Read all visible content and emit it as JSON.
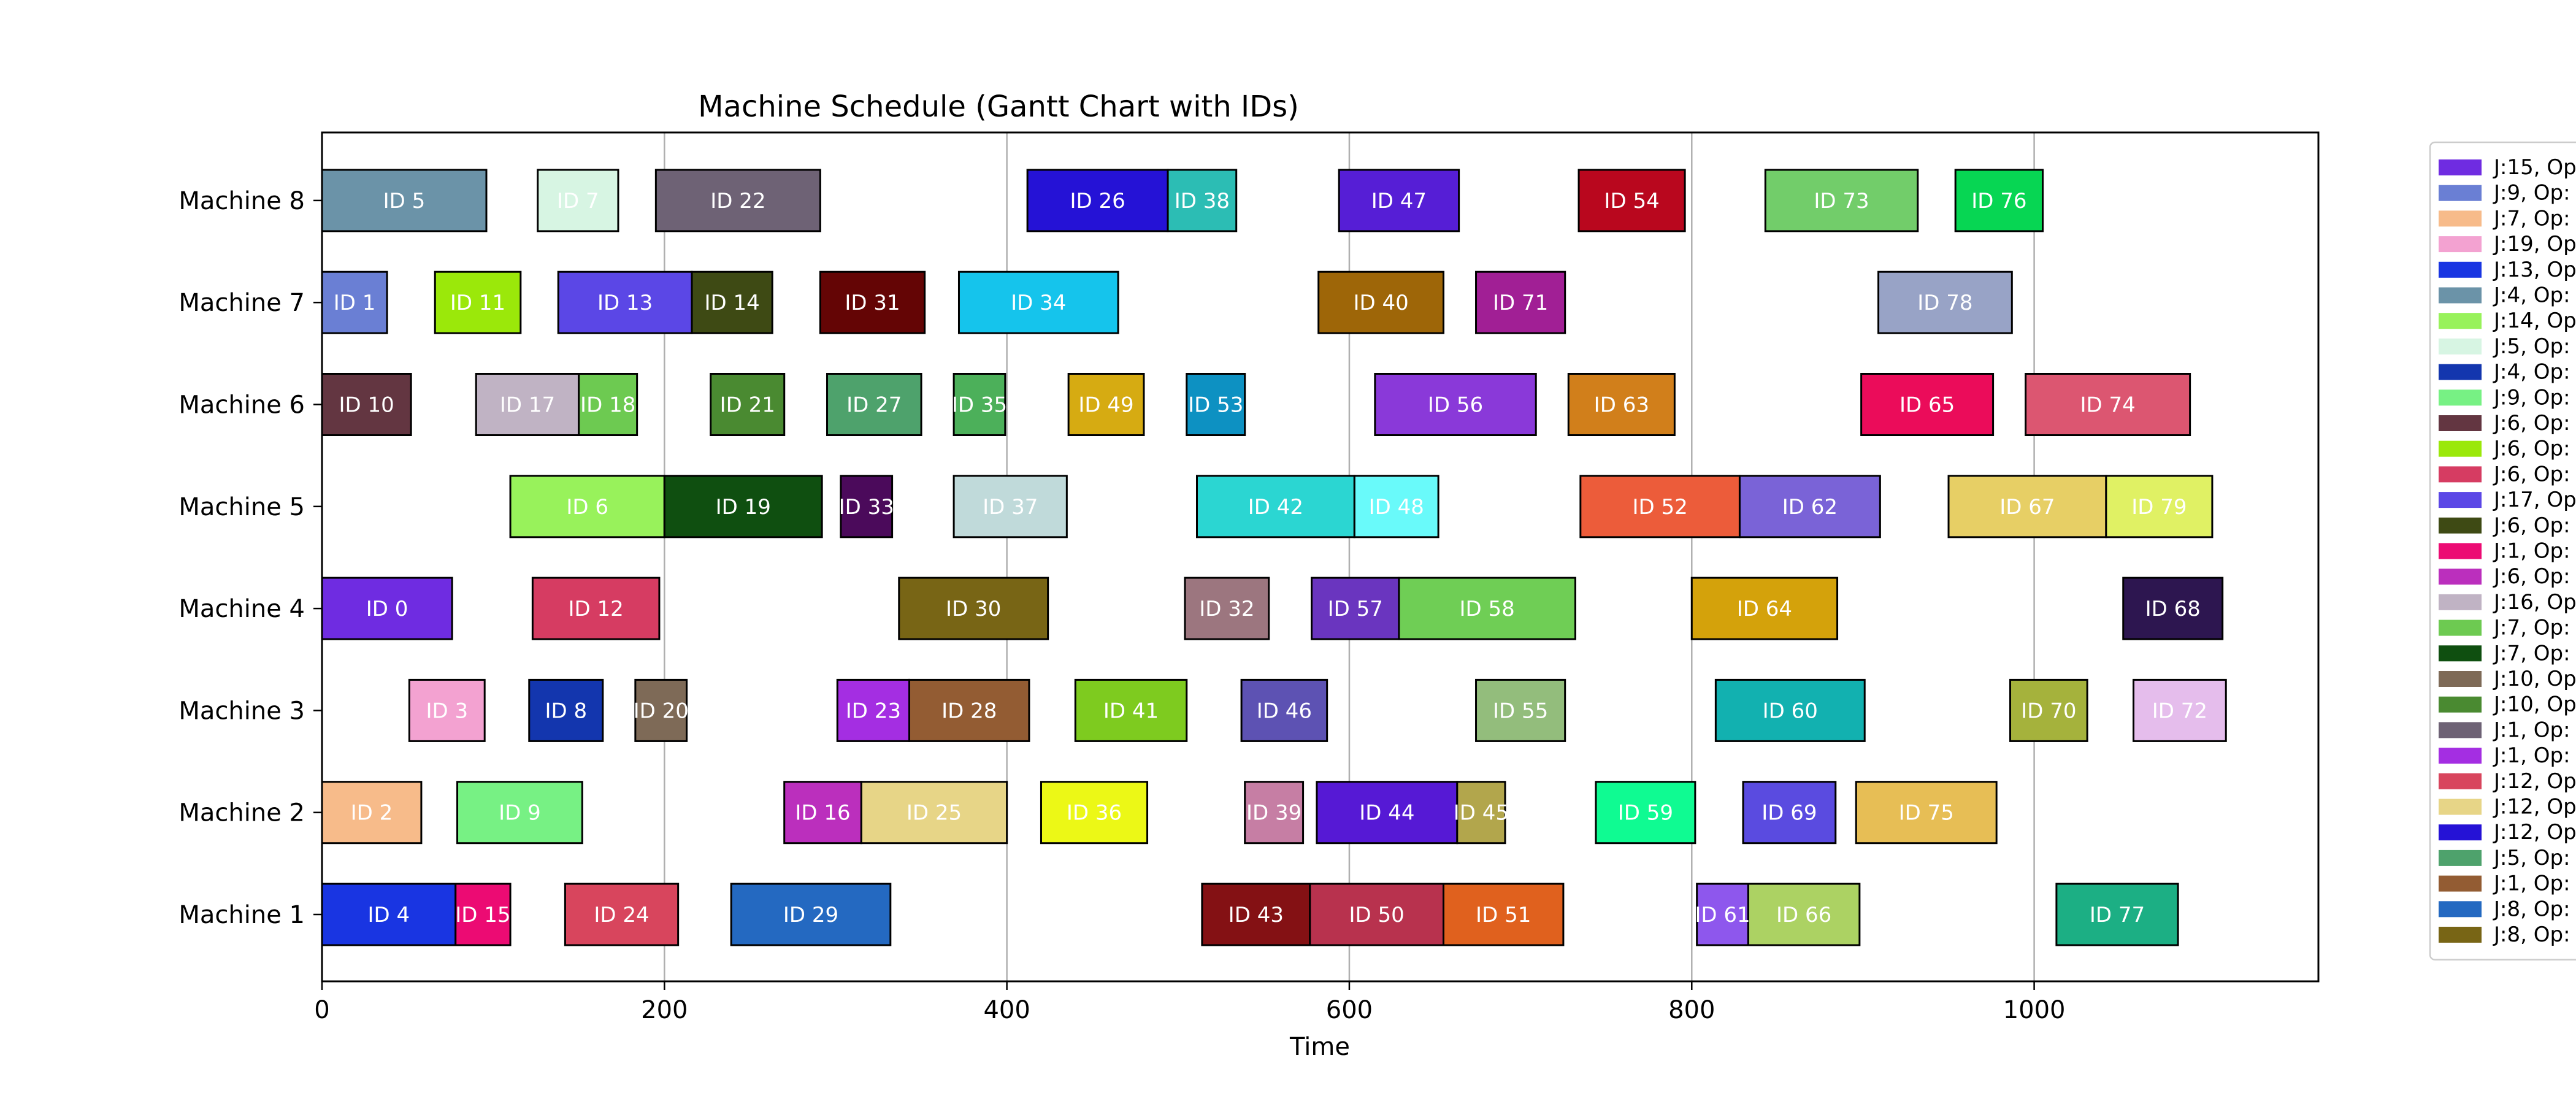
{
  "chart_data": {
    "type": "gantt",
    "title": "Machine Schedule (Gantt Chart with IDs)",
    "xlabel": "Time",
    "ylabel": "",
    "xlim": [
      0,
      1166
    ],
    "x_ticks": [
      0,
      200,
      400,
      600,
      800,
      1000
    ],
    "grid": "vertical",
    "legend_placement": "right",
    "machines": [
      "Machine 1",
      "Machine 2",
      "Machine 3",
      "Machine 4",
      "Machine 5",
      "Machine 6",
      "Machine 7",
      "Machine 8"
    ],
    "tasks": [
      {
        "label": "ID 5",
        "machine": "Machine 8",
        "start": 0,
        "end": 96,
        "color": "#6b93a8"
      },
      {
        "label": "ID 7",
        "machine": "Machine 8",
        "start": 126,
        "end": 173,
        "color": "#d7f5e3"
      },
      {
        "label": "ID 22",
        "machine": "Machine 8",
        "start": 195,
        "end": 291,
        "color": "#6e6275"
      },
      {
        "label": "ID 26",
        "machine": "Machine 8",
        "start": 412,
        "end": 494,
        "color": "#2512d6"
      },
      {
        "label": "ID 38",
        "machine": "Machine 8",
        "start": 494,
        "end": 534,
        "color": "#2cbdb4"
      },
      {
        "label": "ID 47",
        "machine": "Machine 8",
        "start": 594,
        "end": 664,
        "color": "#561ed6"
      },
      {
        "label": "ID 54",
        "machine": "Machine 8",
        "start": 734,
        "end": 796,
        "color": "#b9071e"
      },
      {
        "label": "ID 73",
        "machine": "Machine 8",
        "start": 843,
        "end": 932,
        "color": "#72cd6a"
      },
      {
        "label": "ID 76",
        "machine": "Machine 8",
        "start": 954,
        "end": 1005,
        "color": "#07d653"
      },
      {
        "label": "ID 1",
        "machine": "Machine 7",
        "start": 0,
        "end": 38,
        "color": "#6a7fd4"
      },
      {
        "label": "ID 11",
        "machine": "Machine 7",
        "start": 66,
        "end": 116,
        "color": "#9be80a"
      },
      {
        "label": "ID 13",
        "machine": "Machine 7",
        "start": 138,
        "end": 216,
        "color": "#5b47e6"
      },
      {
        "label": "ID 14",
        "machine": "Machine 7",
        "start": 216,
        "end": 263,
        "color": "#3e4a14"
      },
      {
        "label": "ID 31",
        "machine": "Machine 7",
        "start": 291,
        "end": 352,
        "color": "#640505"
      },
      {
        "label": "ID 34",
        "machine": "Machine 7",
        "start": 372,
        "end": 465,
        "color": "#15c4ec"
      },
      {
        "label": "ID 40",
        "machine": "Machine 7",
        "start": 582,
        "end": 655,
        "color": "#9e6608"
      },
      {
        "label": "ID 71",
        "machine": "Machine 7",
        "start": 674,
        "end": 726,
        "color": "#a11f95"
      },
      {
        "label": "ID 78",
        "machine": "Machine 7",
        "start": 909,
        "end": 987,
        "color": "#98a3c6"
      },
      {
        "label": "ID 10",
        "machine": "Machine 6",
        "start": 0,
        "end": 52,
        "color": "#633641"
      },
      {
        "label": "ID 17",
        "machine": "Machine 6",
        "start": 90,
        "end": 150,
        "color": "#c0b3c4"
      },
      {
        "label": "ID 18",
        "machine": "Machine 6",
        "start": 150,
        "end": 184,
        "color": "#6dca51"
      },
      {
        "label": "ID 21",
        "machine": "Machine 6",
        "start": 227,
        "end": 270,
        "color": "#4a8a31"
      },
      {
        "label": "ID 27",
        "machine": "Machine 6",
        "start": 295,
        "end": 350,
        "color": "#4ea26c"
      },
      {
        "label": "ID 35",
        "machine": "Machine 6",
        "start": 369,
        "end": 399,
        "color": "#4cb05a"
      },
      {
        "label": "ID 49",
        "machine": "Machine 6",
        "start": 436,
        "end": 480,
        "color": "#d6ab12"
      },
      {
        "label": "ID 53",
        "machine": "Machine 6",
        "start": 505,
        "end": 539,
        "color": "#0d91c2"
      },
      {
        "label": "ID 56",
        "machine": "Machine 6",
        "start": 615,
        "end": 709,
        "color": "#8a39d9"
      },
      {
        "label": "ID 63",
        "machine": "Machine 6",
        "start": 728,
        "end": 790,
        "color": "#d17f1b"
      },
      {
        "label": "ID 65",
        "machine": "Machine 6",
        "start": 899,
        "end": 976,
        "color": "#eb0c5a"
      },
      {
        "label": "ID 74",
        "machine": "Machine 6",
        "start": 995,
        "end": 1091,
        "color": "#dc5671"
      },
      {
        "label": "ID 6",
        "machine": "Machine 5",
        "start": 110,
        "end": 200,
        "color": "#98f25b"
      },
      {
        "label": "ID 19",
        "machine": "Machine 5",
        "start": 200,
        "end": 292,
        "color": "#0f4f10"
      },
      {
        "label": "ID 33",
        "machine": "Machine 5",
        "start": 303,
        "end": 333,
        "color": "#4b0a5b"
      },
      {
        "label": "ID 37",
        "machine": "Machine 5",
        "start": 369,
        "end": 435,
        "color": "#c0dada"
      },
      {
        "label": "ID 42",
        "machine": "Machine 5",
        "start": 511,
        "end": 603,
        "color": "#2bd6d2"
      },
      {
        "label": "ID 48",
        "machine": "Machine 5",
        "start": 603,
        "end": 652,
        "color": "#69fafa"
      },
      {
        "label": "ID 52",
        "machine": "Machine 5",
        "start": 735,
        "end": 828,
        "color": "#ec5c3a"
      },
      {
        "label": "ID 62",
        "machine": "Machine 5",
        "start": 828,
        "end": 910,
        "color": "#7a63d7"
      },
      {
        "label": "ID 67",
        "machine": "Machine 5",
        "start": 950,
        "end": 1042,
        "color": "#e7cf65"
      },
      {
        "label": "ID 79",
        "machine": "Machine 5",
        "start": 1042,
        "end": 1104,
        "color": "#e0f164"
      },
      {
        "label": "ID 0",
        "machine": "Machine 4",
        "start": 0,
        "end": 76,
        "color": "#6f2ce1"
      },
      {
        "label": "ID 12",
        "machine": "Machine 4",
        "start": 123,
        "end": 197,
        "color": "#d63c62"
      },
      {
        "label": "ID 30",
        "machine": "Machine 4",
        "start": 337,
        "end": 424,
        "color": "#786515"
      },
      {
        "label": "ID 32",
        "machine": "Machine 4",
        "start": 504,
        "end": 553,
        "color": "#9c767f"
      },
      {
        "label": "ID 57",
        "machine": "Machine 4",
        "start": 578,
        "end": 629,
        "color": "#6a35bf"
      },
      {
        "label": "ID 58",
        "machine": "Machine 4",
        "start": 629,
        "end": 732,
        "color": "#6fce55"
      },
      {
        "label": "ID 64",
        "machine": "Machine 4",
        "start": 800,
        "end": 885,
        "color": "#d4a20b"
      },
      {
        "label": "ID 68",
        "machine": "Machine 4",
        "start": 1052,
        "end": 1110,
        "color": "#2d1650"
      },
      {
        "label": "ID 3",
        "machine": "Machine 3",
        "start": 51,
        "end": 95,
        "color": "#f3a2d1"
      },
      {
        "label": "ID 8",
        "machine": "Machine 3",
        "start": 121,
        "end": 164,
        "color": "#1336ae"
      },
      {
        "label": "ID 20",
        "machine": "Machine 3",
        "start": 183,
        "end": 213,
        "color": "#7e6a57"
      },
      {
        "label": "ID 23",
        "machine": "Machine 3",
        "start": 301,
        "end": 343,
        "color": "#a42ee2"
      },
      {
        "label": "ID 28",
        "machine": "Machine 3",
        "start": 343,
        "end": 413,
        "color": "#935c33"
      },
      {
        "label": "ID 41",
        "machine": "Machine 3",
        "start": 440,
        "end": 505,
        "color": "#7ecb1f"
      },
      {
        "label": "ID 46",
        "machine": "Machine 3",
        "start": 537,
        "end": 587,
        "color": "#5d52b3"
      },
      {
        "label": "ID 55",
        "machine": "Machine 3",
        "start": 674,
        "end": 726,
        "color": "#93bd7c"
      },
      {
        "label": "ID 60",
        "machine": "Machine 3",
        "start": 814,
        "end": 901,
        "color": "#12b1b0"
      },
      {
        "label": "ID 70",
        "machine": "Machine 3",
        "start": 986,
        "end": 1031,
        "color": "#a5b23c"
      },
      {
        "label": "ID 72",
        "machine": "Machine 3",
        "start": 1058,
        "end": 1112,
        "color": "#e5bdec"
      },
      {
        "label": "ID 2",
        "machine": "Machine 2",
        "start": 0,
        "end": 58,
        "color": "#f7bb8a"
      },
      {
        "label": "ID 9",
        "machine": "Machine 2",
        "start": 79,
        "end": 152,
        "color": "#77f184"
      },
      {
        "label": "ID 16",
        "machine": "Machine 2",
        "start": 270,
        "end": 315,
        "color": "#bb2fbd"
      },
      {
        "label": "ID 25",
        "machine": "Machine 2",
        "start": 315,
        "end": 400,
        "color": "#e7d587"
      },
      {
        "label": "ID 36",
        "machine": "Machine 2",
        "start": 420,
        "end": 482,
        "color": "#ecf816"
      },
      {
        "label": "ID 39",
        "machine": "Machine 2",
        "start": 539,
        "end": 573,
        "color": "#c67ea4"
      },
      {
        "label": "ID 44",
        "machine": "Machine 2",
        "start": 581,
        "end": 663,
        "color": "#5619d5"
      },
      {
        "label": "ID 45",
        "machine": "Machine 2",
        "start": 663,
        "end": 691,
        "color": "#b2a64c"
      },
      {
        "label": "ID 59",
        "machine": "Machine 2",
        "start": 744,
        "end": 802,
        "color": "#0ffb92"
      },
      {
        "label": "ID 69",
        "machine": "Machine 2",
        "start": 830,
        "end": 884,
        "color": "#5a4be0"
      },
      {
        "label": "ID 75",
        "machine": "Machine 2",
        "start": 896,
        "end": 978,
        "color": "#e7be55"
      },
      {
        "label": "ID 4",
        "machine": "Machine 1",
        "start": 0,
        "end": 78,
        "color": "#1935e2"
      },
      {
        "label": "ID 15",
        "machine": "Machine 1",
        "start": 78,
        "end": 110,
        "color": "#ec0b73"
      },
      {
        "label": "ID 24",
        "machine": "Machine 1",
        "start": 142,
        "end": 208,
        "color": "#d8455d"
      },
      {
        "label": "ID 29",
        "machine": "Machine 1",
        "start": 239,
        "end": 332,
        "color": "#2469c1"
      },
      {
        "label": "ID 43",
        "machine": "Machine 1",
        "start": 514,
        "end": 577,
        "color": "#841114"
      },
      {
        "label": "ID 50",
        "machine": "Machine 1",
        "start": 577,
        "end": 655,
        "color": "#b8324e"
      },
      {
        "label": "ID 51",
        "machine": "Machine 1",
        "start": 655,
        "end": 725,
        "color": "#e0611e"
      },
      {
        "label": "ID 61",
        "machine": "Machine 1",
        "start": 803,
        "end": 833,
        "color": "#8e57ed"
      },
      {
        "label": "ID 66",
        "machine": "Machine 1",
        "start": 833,
        "end": 898,
        "color": "#acd263"
      },
      {
        "label": "ID 77",
        "machine": "Machine 1",
        "start": 1013,
        "end": 1084,
        "color": "#1caf84"
      }
    ],
    "legend": [
      {
        "label": "J:15, Op",
        "color": "#6f2ce1"
      },
      {
        "label": "J:9, Op:",
        "color": "#6a7fd4"
      },
      {
        "label": "J:7, Op:",
        "color": "#f7bb8a"
      },
      {
        "label": "J:19, Op",
        "color": "#f3a2d1"
      },
      {
        "label": "J:13, Op",
        "color": "#1935e2"
      },
      {
        "label": "J:4, Op:",
        "color": "#6b93a8"
      },
      {
        "label": "J:14, Op",
        "color": "#98f25b"
      },
      {
        "label": "J:5, Op:",
        "color": "#d7f5e3"
      },
      {
        "label": "J:4, Op:",
        "color": "#1336ae"
      },
      {
        "label": "J:9, Op:",
        "color": "#77f184"
      },
      {
        "label": "J:6, Op:",
        "color": "#633641"
      },
      {
        "label": "J:6, Op:",
        "color": "#9be80a"
      },
      {
        "label": "J:6, Op:",
        "color": "#d63c62"
      },
      {
        "label": "J:17, Op",
        "color": "#5b47e6"
      },
      {
        "label": "J:6, Op:",
        "color": "#3e4a14"
      },
      {
        "label": "J:1, Op:",
        "color": "#ec0b73"
      },
      {
        "label": "J:6, Op:",
        "color": "#bb2fbd"
      },
      {
        "label": "J:16, Op",
        "color": "#c0b3c4"
      },
      {
        "label": "J:7, Op:",
        "color": "#6dca51"
      },
      {
        "label": "J:7, Op:",
        "color": "#0f4f10"
      },
      {
        "label": "J:10, Op",
        "color": "#7e6a57"
      },
      {
        "label": "J:10, Op",
        "color": "#4a8a31"
      },
      {
        "label": "J:1, Op:",
        "color": "#6e6275"
      },
      {
        "label": "J:1, Op:",
        "color": "#a42ee2"
      },
      {
        "label": "J:12, Op",
        "color": "#d8455d"
      },
      {
        "label": "J:12, Op",
        "color": "#e7d587"
      },
      {
        "label": "J:12, Op",
        "color": "#2512d6"
      },
      {
        "label": "J:5, Op:",
        "color": "#4ea26c"
      },
      {
        "label": "J:1, Op:",
        "color": "#935c33"
      },
      {
        "label": "J:8, Op:",
        "color": "#2469c1"
      },
      {
        "label": "J:8, Op:",
        "color": "#786515"
      }
    ]
  }
}
